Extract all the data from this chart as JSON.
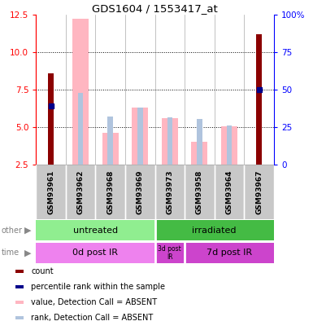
{
  "title": "GDS1604 / 1553417_at",
  "samples": [
    "GSM93961",
    "GSM93962",
    "GSM93968",
    "GSM93969",
    "GSM93973",
    "GSM93958",
    "GSM93964",
    "GSM93967"
  ],
  "count_values": [
    8.6,
    0,
    0,
    0,
    0,
    0,
    0,
    11.2
  ],
  "percentile_rank_values": [
    6.4,
    0,
    0,
    0,
    0,
    0,
    0,
    7.5
  ],
  "absent_value_bars": [
    0,
    12.2,
    4.6,
    6.3,
    5.6,
    4.0,
    5.05,
    0
  ],
  "absent_rank_bars": [
    0,
    7.3,
    5.7,
    6.3,
    5.65,
    5.55,
    5.1,
    0
  ],
  "ylim": [
    2.5,
    12.5
  ],
  "yticks_left": [
    2.5,
    5.0,
    7.5,
    10.0,
    12.5
  ],
  "yticks_right": [
    0,
    25,
    50,
    75,
    100
  ],
  "color_count": "#8B0000",
  "color_percentile": "#00008B",
  "color_absent_value": "#FFB6C1",
  "color_absent_rank": "#B0C4DE",
  "bg_sample_row": "#C8C8C8",
  "untreated_color": "#90EE90",
  "irradiated_color": "#44BB44",
  "time_light_color": "#EE82EE",
  "time_dark_color": "#CC44CC",
  "legend_items": [
    {
      "color": "#8B0000",
      "label": "count"
    },
    {
      "color": "#00008B",
      "label": "percentile rank within the sample"
    },
    {
      "color": "#FFB6C1",
      "label": "value, Detection Call = ABSENT"
    },
    {
      "color": "#B0C4DE",
      "label": "rank, Detection Call = ABSENT"
    }
  ]
}
